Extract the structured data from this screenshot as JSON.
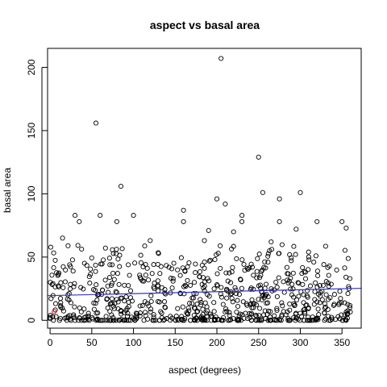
{
  "chart_data": {
    "type": "scatter",
    "title": "aspect vs basal area",
    "xlabel": "aspect (degrees)",
    "ylabel": "basal area",
    "xlim": [
      -3,
      373
    ],
    "ylim": [
      -6.2,
      215
    ],
    "x_ticks": [
      0,
      50,
      100,
      150,
      200,
      250,
      300,
      350
    ],
    "y_ticks": [
      0,
      50,
      100,
      150,
      200
    ],
    "grid": false,
    "legend": "none",
    "point_color": "#000000",
    "fit_line": {
      "color": "#3333cc",
      "x": [
        -3,
        373
      ],
      "y": [
        19.5,
        25.3
      ]
    },
    "highlight_points": [
      {
        "x": 5,
        "y": 7,
        "color": "#cc0000"
      }
    ],
    "notable_points": [
      {
        "x": 205,
        "y": 207
      },
      {
        "x": 55,
        "y": 156
      },
      {
        "x": 250,
        "y": 129
      },
      {
        "x": 85,
        "y": 106
      },
      {
        "x": 255,
        "y": 101
      },
      {
        "x": 300,
        "y": 101
      },
      {
        "x": 200,
        "y": 96
      },
      {
        "x": 275,
        "y": 96
      },
      {
        "x": 210,
        "y": 92
      },
      {
        "x": 160,
        "y": 87
      },
      {
        "x": 30,
        "y": 83
      },
      {
        "x": 60,
        "y": 83
      },
      {
        "x": 100,
        "y": 83
      },
      {
        "x": 230,
        "y": 83
      },
      {
        "x": 35,
        "y": 78
      },
      {
        "x": 80,
        "y": 78
      },
      {
        "x": 160,
        "y": 78
      },
      {
        "x": 230,
        "y": 78
      },
      {
        "x": 275,
        "y": 78
      },
      {
        "x": 320,
        "y": 78
      },
      {
        "x": 350,
        "y": 78
      },
      {
        "x": 190,
        "y": 71
      },
      {
        "x": 220,
        "y": 70
      },
      {
        "x": 295,
        "y": 72
      },
      {
        "x": 355,
        "y": 73
      },
      {
        "x": 15,
        "y": 65
      },
      {
        "x": 120,
        "y": 63
      },
      {
        "x": 185,
        "y": 63
      },
      {
        "x": 265,
        "y": 62
      }
    ],
    "bulk_cloud": {
      "description": "dense cloud of points across x 0-360, y mostly 0-55",
      "n": 750,
      "x_range": [
        0,
        360
      ],
      "y_range": [
        0,
        60
      ],
      "seed": 7
    }
  }
}
